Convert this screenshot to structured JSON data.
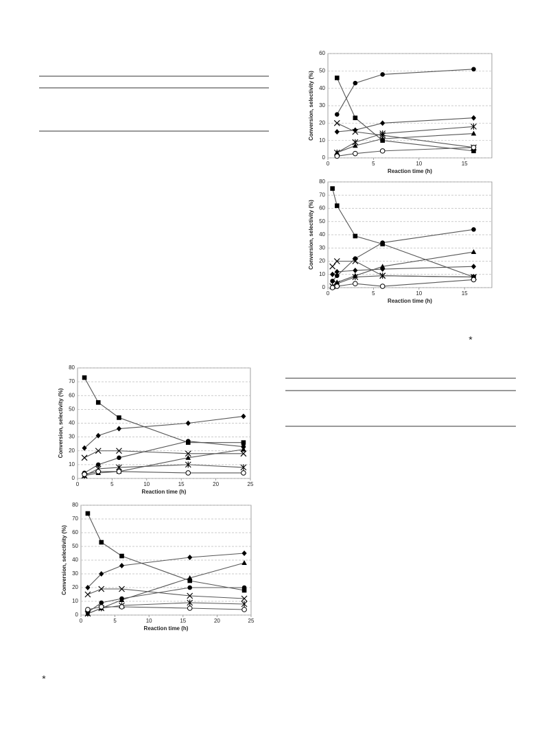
{
  "chart_data": [
    {
      "type": "line",
      "xlabel": "Reaction time (h)",
      "ylabel": "Conversion, selectivity (%)",
      "x": [
        1,
        3,
        6,
        16
      ],
      "xlim": [
        0,
        18
      ],
      "xticks": [
        0,
        5,
        10,
        15
      ],
      "ylim": [
        0,
        60
      ],
      "yticks": [
        0,
        10,
        20,
        30,
        40,
        50,
        60
      ],
      "grid": true,
      "series": [
        {
          "marker": "square",
          "color": "#000000",
          "values": [
            46,
            23,
            10,
            4
          ]
        },
        {
          "marker": "circle",
          "color": "#000000",
          "values": [
            25,
            43,
            48,
            51
          ]
        },
        {
          "marker": "diamond",
          "color": "#000000",
          "values": [
            15,
            16,
            20,
            23
          ]
        },
        {
          "marker": "x",
          "color": "#000000",
          "values": [
            20,
            15,
            13,
            6
          ]
        },
        {
          "marker": "asterisk",
          "color": "#000000",
          "values": [
            3,
            9,
            14,
            18
          ]
        },
        {
          "marker": "triangle",
          "color": "#000000",
          "values": [
            3,
            7,
            11,
            14
          ]
        },
        {
          "marker": "open-circle",
          "color": "#000000",
          "values": [
            1,
            2.5,
            4,
            6
          ]
        }
      ]
    },
    {
      "type": "line",
      "xlabel": "Reaction time (h)",
      "ylabel": "Conversion, selectivity (%)",
      "x": [
        0.5,
        1,
        3,
        6,
        16
      ],
      "xlim": [
        0,
        18
      ],
      "xticks": [
        0,
        5,
        10,
        15
      ],
      "ylim": [
        0,
        80
      ],
      "yticks": [
        0,
        10,
        20,
        30,
        40,
        50,
        60,
        70,
        80
      ],
      "grid": true,
      "series": [
        {
          "marker": "square",
          "color": "#000000",
          "values": [
            75,
            62,
            39,
            33,
            8
          ]
        },
        {
          "marker": "circle",
          "color": "#000000",
          "values": [
            5,
            9,
            22,
            34,
            44
          ]
        },
        {
          "marker": "diamond",
          "color": "#000000",
          "values": [
            10,
            12,
            13,
            14,
            16
          ]
        },
        {
          "marker": "x",
          "color": "#000000",
          "values": [
            16,
            20,
            20,
            9,
            8
          ]
        },
        {
          "marker": "asterisk",
          "color": "#000000",
          "values": [
            1,
            3,
            8,
            9,
            8
          ]
        },
        {
          "marker": "triangle",
          "color": "#000000",
          "values": [
            1,
            4,
            9,
            16,
            27
          ]
        },
        {
          "marker": "open-circle",
          "color": "#000000",
          "values": [
            0,
            1,
            3,
            1,
            6
          ]
        }
      ]
    },
    {
      "type": "line",
      "xlabel": "Reaction time (h)",
      "ylabel": "Conversion, selectivity (%)",
      "x": [
        1,
        3,
        6,
        16,
        24
      ],
      "xlim": [
        0,
        25
      ],
      "xticks": [
        0,
        5,
        10,
        15,
        20,
        25
      ],
      "ylim": [
        0,
        80
      ],
      "yticks": [
        0,
        10,
        20,
        30,
        40,
        50,
        60,
        70,
        80
      ],
      "grid": true,
      "series": [
        {
          "marker": "square",
          "color": "#000000",
          "values": [
            73,
            55,
            44,
            26,
            26
          ]
        },
        {
          "marker": "diamond",
          "color": "#000000",
          "values": [
            22,
            31,
            36,
            40,
            45
          ]
        },
        {
          "marker": "x",
          "color": "#000000",
          "values": [
            15,
            20,
            20,
            18,
            18
          ]
        },
        {
          "marker": "circle",
          "color": "#000000",
          "values": [
            4,
            10,
            15,
            27,
            23
          ]
        },
        {
          "marker": "triangle",
          "color": "#000000",
          "values": [
            2,
            4,
            5,
            15,
            21
          ]
        },
        {
          "marker": "asterisk",
          "color": "#000000",
          "values": [
            2,
            7,
            8,
            10,
            8
          ]
        },
        {
          "marker": "open-circle",
          "color": "#000000",
          "values": [
            3,
            5,
            5,
            4,
            4
          ]
        }
      ]
    },
    {
      "type": "line",
      "xlabel": "Reaction time (h)",
      "ylabel": "Conversion, selectivity (%)",
      "x": [
        1,
        3,
        6,
        16,
        24
      ],
      "xlim": [
        0,
        25
      ],
      "xticks": [
        0,
        5,
        10,
        15,
        20,
        25
      ],
      "ylim": [
        0,
        80
      ],
      "yticks": [
        0,
        10,
        20,
        30,
        40,
        50,
        60,
        70,
        80
      ],
      "grid": true,
      "series": [
        {
          "marker": "square",
          "color": "#000000",
          "values": [
            74,
            53,
            43,
            25,
            18
          ]
        },
        {
          "marker": "diamond",
          "color": "#000000",
          "values": [
            20,
            30,
            36,
            42,
            45
          ]
        },
        {
          "marker": "x",
          "color": "#000000",
          "values": [
            15,
            19,
            19,
            14,
            12
          ]
        },
        {
          "marker": "circle",
          "color": "#000000",
          "values": [
            2,
            9,
            12,
            20,
            20
          ]
        },
        {
          "marker": "triangle",
          "color": "#000000",
          "values": [
            1,
            5,
            11,
            27,
            38
          ]
        },
        {
          "marker": "asterisk",
          "color": "#000000",
          "values": [
            1,
            5,
            7,
            9,
            8
          ]
        },
        {
          "marker": "open-circle",
          "color": "#000000",
          "values": [
            4,
            6,
            6,
            5,
            4
          ]
        }
      ]
    }
  ],
  "footnote_marks": [
    "*",
    "*"
  ]
}
